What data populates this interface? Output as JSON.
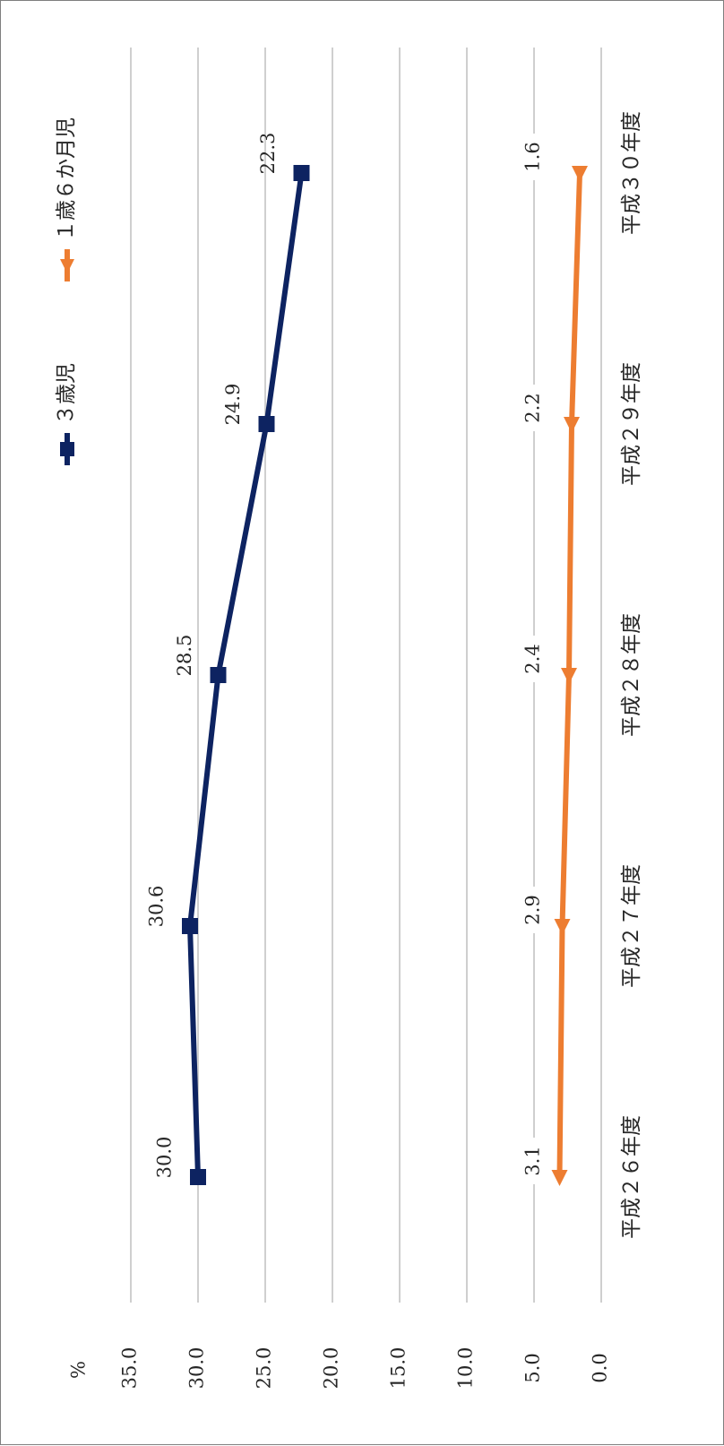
{
  "chart_data": {
    "type": "line",
    "orientation": "rotated-90-clockwise",
    "ylabel": "%",
    "ylim": [
      0,
      35
    ],
    "yticks": [
      0,
      5,
      10,
      15,
      20,
      25,
      30,
      35
    ],
    "ytick_labels": [
      "0.0",
      "5.0",
      "10.0",
      "15.0",
      "20.0",
      "25.0",
      "30.0",
      "35.0"
    ],
    "grid": true,
    "legend_position": "top",
    "categories": [
      "平成２６年度",
      "平成２７年度",
      "平成２８年度",
      "平成２９年度",
      "平成３０年度"
    ],
    "series": [
      {
        "name": "３歳児",
        "values": [
          30.0,
          30.6,
          28.5,
          24.9,
          22.3
        ],
        "labels": [
          "30.0",
          "30.6",
          "28.5",
          "24.9",
          "22.3"
        ],
        "color": "#0d2361",
        "marker": "square"
      },
      {
        "name": "１歳６か月児",
        "values": [
          3.1,
          2.9,
          2.4,
          2.2,
          1.6
        ],
        "labels": [
          "3.1",
          "2.9",
          "2.4",
          "2.2",
          "1.6"
        ],
        "color": "#ed7d31",
        "marker": "triangle"
      }
    ]
  }
}
